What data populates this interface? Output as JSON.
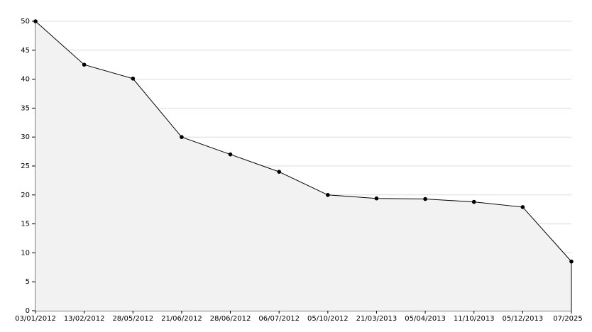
{
  "chart_data": {
    "type": "area",
    "categories": [
      "03/01/2012",
      "13/02/2012",
      "28/05/2012",
      "21/06/2012",
      "28/06/2012",
      "06/07/2012",
      "05/10/2012",
      "21/03/2013",
      "05/04/2013",
      "11/10/2013",
      "05/12/2013",
      "07/2025"
    ],
    "values": [
      50,
      42.5,
      40.1,
      30,
      27,
      24,
      20,
      19.4,
      19.3,
      18.8,
      17.9,
      8.5
    ],
    "color": "#000000",
    "fill": "#f2f2f2",
    "ylim": [
      0,
      50
    ],
    "yticks": [
      0,
      5,
      10,
      15,
      20,
      25,
      30,
      35,
      40,
      45,
      50
    ],
    "grid": true
  }
}
